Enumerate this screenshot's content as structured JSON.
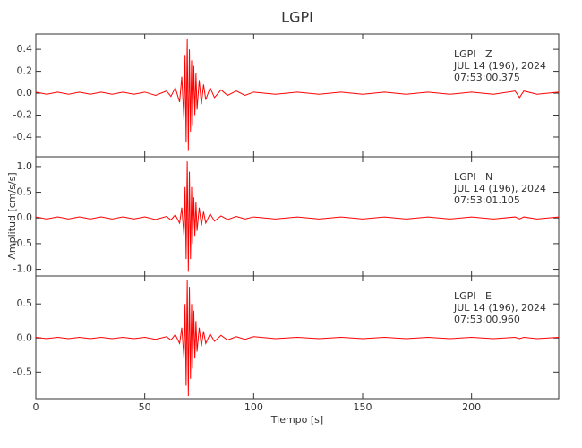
{
  "title": "LGPI",
  "xlabel": "Tiempo [s]",
  "ylabel": "Amplitud [cm/s/s]",
  "chart_data": [
    {
      "type": "line",
      "annotations": [
        "LGPI   Z",
        "JUL 14 (196), 2024",
        "07:53:00.375"
      ],
      "xlim": [
        0,
        240
      ],
      "ylim": [
        -0.58,
        0.54
      ],
      "yticks": [
        -0.4,
        -0.2,
        {
          "value": 0,
          "label": "0.0"
        },
        0.2,
        0.4
      ],
      "x": [
        0,
        5,
        10,
        15,
        20,
        25,
        30,
        35,
        40,
        45,
        50,
        55,
        60,
        62,
        64,
        66,
        67,
        68,
        68.5,
        69,
        69.5,
        70,
        70.5,
        71,
        71.5,
        72,
        72.5,
        73,
        73.5,
        74,
        75,
        76,
        77,
        78,
        80,
        82,
        85,
        88,
        92,
        96,
        100,
        110,
        120,
        130,
        140,
        150,
        160,
        170,
        180,
        190,
        200,
        210,
        220,
        222,
        224,
        230,
        240
      ],
      "series": [
        {
          "color": "#ff0000",
          "values": [
            0.01,
            -0.01,
            0.01,
            -0.01,
            0.01,
            -0.01,
            0.01,
            -0.01,
            0.01,
            -0.01,
            0.01,
            -0.02,
            0.02,
            -0.03,
            0.05,
            -0.08,
            0.15,
            -0.25,
            0.35,
            -0.45,
            0.5,
            -0.52,
            0.4,
            -0.35,
            0.3,
            -0.3,
            0.25,
            -0.2,
            0.18,
            -0.15,
            0.12,
            -0.1,
            0.08,
            -0.06,
            0.05,
            -0.04,
            0.03,
            -0.02,
            0.02,
            -0.02,
            0.01,
            -0.01,
            0.01,
            -0.01,
            0.01,
            -0.01,
            0.01,
            -0.01,
            0.01,
            -0.01,
            0.01,
            -0.01,
            0.02,
            -0.04,
            0.02,
            -0.01,
            0.01
          ]
        }
      ]
    },
    {
      "type": "line",
      "annotations": [
        "LGPI   N",
        "JUL 14 (196), 2024",
        "07:53:01.105"
      ],
      "xlim": [
        0,
        240
      ],
      "ylim": [
        -1.13,
        1.19
      ],
      "yticks": [
        {
          "value": -1,
          "label": "-1.0"
        },
        -0.5,
        {
          "value": 0,
          "label": "0.0"
        },
        0.5,
        {
          "value": 1,
          "label": "1.0"
        }
      ],
      "x": [
        0,
        5,
        10,
        15,
        20,
        25,
        30,
        35,
        40,
        45,
        50,
        55,
        60,
        62,
        64,
        66,
        67,
        68,
        68.5,
        69,
        69.5,
        70,
        70.5,
        71,
        71.5,
        72,
        72.5,
        73,
        73.5,
        74,
        75,
        76,
        77,
        78,
        80,
        82,
        85,
        88,
        92,
        96,
        100,
        110,
        120,
        130,
        140,
        150,
        160,
        170,
        180,
        190,
        200,
        210,
        220,
        222,
        224,
        230,
        240
      ],
      "series": [
        {
          "color": "#ff0000",
          "values": [
            0.02,
            -0.02,
            0.02,
            -0.02,
            0.02,
            -0.02,
            0.02,
            -0.02,
            0.02,
            -0.02,
            0.02,
            -0.03,
            0.03,
            -0.04,
            0.06,
            -0.1,
            0.2,
            -0.35,
            0.6,
            -0.8,
            1.1,
            -1.05,
            0.9,
            -0.8,
            0.6,
            -0.5,
            0.4,
            -0.35,
            0.3,
            -0.25,
            0.2,
            -0.15,
            0.12,
            -0.1,
            0.08,
            -0.06,
            0.04,
            -0.03,
            0.03,
            -0.02,
            0.02,
            -0.02,
            0.02,
            -0.02,
            0.02,
            -0.02,
            0.02,
            -0.02,
            0.02,
            -0.02,
            0.02,
            -0.02,
            0.02,
            -0.02,
            0.02,
            -0.02,
            0.02
          ]
        }
      ]
    },
    {
      "type": "line",
      "annotations": [
        "LGPI   E",
        "JUL 14 (196), 2024",
        "07:53:00.960"
      ],
      "xlim": [
        0,
        240
      ],
      "ylim": [
        -0.89,
        0.91
      ],
      "yticks": [
        -0.5,
        {
          "value": 0,
          "label": "0.0"
        },
        0.5
      ],
      "xticks": [
        0,
        50,
        100,
        150,
        200
      ],
      "x": [
        0,
        5,
        10,
        15,
        20,
        25,
        30,
        35,
        40,
        45,
        50,
        55,
        60,
        62,
        64,
        66,
        67,
        68,
        68.5,
        69,
        69.5,
        70,
        70.5,
        71,
        71.5,
        72,
        72.5,
        73,
        73.5,
        74,
        75,
        76,
        77,
        78,
        80,
        82,
        85,
        88,
        92,
        96,
        100,
        110,
        120,
        130,
        140,
        150,
        160,
        170,
        180,
        190,
        200,
        210,
        220,
        222,
        224,
        230,
        240
      ],
      "series": [
        {
          "color": "#ff0000",
          "values": [
            0.01,
            -0.01,
            0.01,
            -0.01,
            0.01,
            -0.01,
            0.01,
            -0.01,
            0.01,
            -0.01,
            0.01,
            -0.02,
            0.02,
            -0.03,
            0.05,
            -0.08,
            0.15,
            -0.3,
            0.5,
            -0.7,
            0.85,
            -0.85,
            0.75,
            -0.6,
            0.5,
            -0.45,
            0.4,
            -0.3,
            0.25,
            -0.2,
            0.15,
            -0.12,
            0.1,
            -0.08,
            0.06,
            -0.05,
            0.04,
            -0.03,
            0.02,
            -0.02,
            0.02,
            -0.01,
            0.01,
            -0.01,
            0.01,
            -0.01,
            0.01,
            -0.01,
            0.01,
            -0.01,
            0.01,
            -0.01,
            0.01,
            -0.01,
            0.01,
            -0.01,
            0.01
          ]
        }
      ]
    }
  ]
}
